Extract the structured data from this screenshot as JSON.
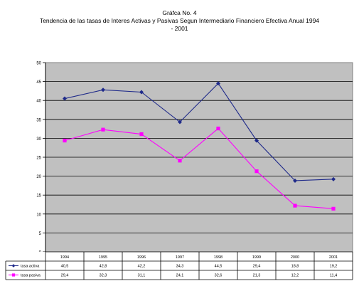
{
  "chart_data": {
    "type": "line",
    "title": [
      "Gráfca No. 4",
      "Tendencia de las tasas de Interes Activas y Pasivas Segun Intermediario Financiero Efectiva Anual 1994",
      "- 2001"
    ],
    "categories": [
      "1994",
      "1995",
      "1996",
      "1997",
      "1998",
      "1999",
      "2000",
      "2001"
    ],
    "series": [
      {
        "name": "tasa activa",
        "color": "#1f2a8a",
        "marker": "diamond",
        "values": [
          40.5,
          42.8,
          42.2,
          34.3,
          44.5,
          29.4,
          18.8,
          19.2
        ],
        "labels": [
          "40,5",
          "42,8",
          "42,2",
          "34,3",
          "44,5",
          "29,4",
          "18,8",
          "19,2"
        ]
      },
      {
        "name": "tasa pasiva",
        "color": "#ff00ff",
        "marker": "square",
        "values": [
          29.4,
          32.3,
          31.1,
          24.1,
          32.6,
          21.3,
          12.2,
          11.4
        ],
        "labels": [
          "29,4",
          "32,3",
          "31,1",
          "24,1",
          "32,6",
          "21,3",
          "12,2",
          "11,4"
        ]
      }
    ],
    "yticks": [
      "0",
      "5",
      "10",
      "15",
      "20",
      "25",
      "30",
      "35",
      "40",
      "45",
      "50"
    ],
    "ylim": [
      0,
      50
    ],
    "grid": true,
    "plot_background": "#c0c0c0",
    "legend": "data-table"
  }
}
